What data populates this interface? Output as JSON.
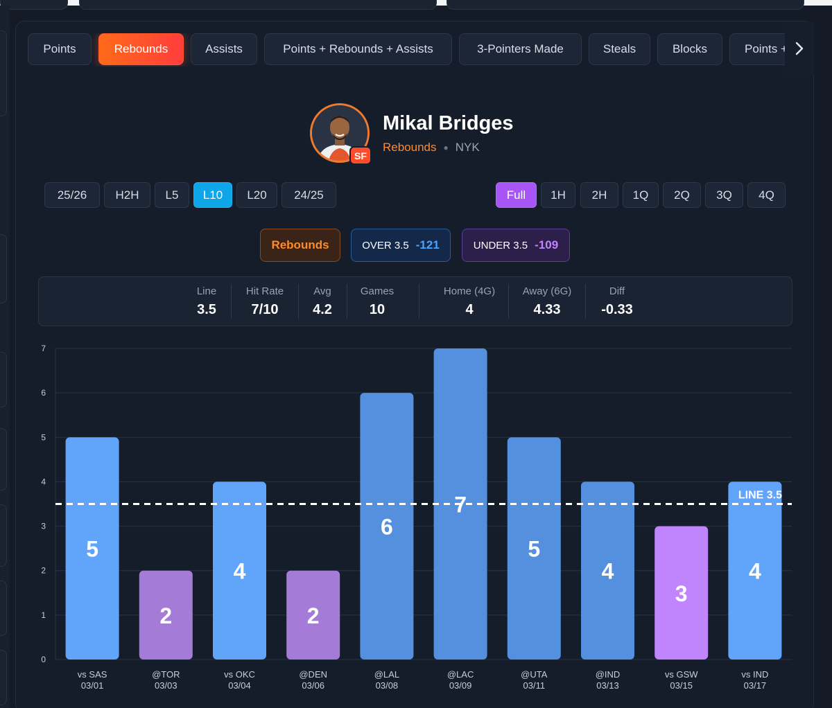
{
  "stat_tabs": [
    {
      "label": "Points",
      "active": false
    },
    {
      "label": "Rebounds",
      "active": true
    },
    {
      "label": "Assists",
      "active": false
    },
    {
      "label": "Points + Rebounds + Assists",
      "active": false
    },
    {
      "label": "3-Pointers Made",
      "active": false
    },
    {
      "label": "Steals",
      "active": false
    },
    {
      "label": "Blocks",
      "active": false
    },
    {
      "label": "Points + ",
      "active": false
    }
  ],
  "player": {
    "name": "Mikal Bridges",
    "stat": "Rebounds",
    "team": "NYK",
    "position": "SF"
  },
  "ranges": [
    {
      "label": "25/26",
      "active": false
    },
    {
      "label": "H2H",
      "active": false
    },
    {
      "label": "L5",
      "active": false
    },
    {
      "label": "L10",
      "active": true
    },
    {
      "label": "L20",
      "active": false
    },
    {
      "label": "24/25",
      "active": false
    }
  ],
  "periods": [
    {
      "label": "Full",
      "active": true
    },
    {
      "label": "1H",
      "active": false
    },
    {
      "label": "2H",
      "active": false
    },
    {
      "label": "1Q",
      "active": false
    },
    {
      "label": "2Q",
      "active": false
    },
    {
      "label": "3Q",
      "active": false
    },
    {
      "label": "4Q",
      "active": false
    }
  ],
  "market": {
    "stat_label": "Rebounds",
    "over_label": "OVER 3.5",
    "over_odds": "-121",
    "under_label": "UNDER 3.5",
    "under_odds": "-109"
  },
  "summary": [
    {
      "label": "Line",
      "value": "3.5"
    },
    {
      "label": "Hit Rate",
      "value": "7/10"
    },
    {
      "label": "Avg",
      "value": "4.2"
    },
    {
      "label": "Games",
      "value": "10"
    },
    {
      "label": "Home (4G)",
      "value": "4"
    },
    {
      "label": "Away (6G)",
      "value": "4.33"
    },
    {
      "label": "Diff",
      "value": "-0.33"
    }
  ],
  "colors": {
    "accent_orange": "#ff6a1a",
    "bar_over_home": "#60a5fa",
    "bar_over_away": "#5490de",
    "bar_under_home": "#c084fc",
    "bar_under_away": "#a57bd8",
    "line": "#ffffff"
  },
  "chart_data": {
    "type": "bar",
    "categories": [
      "vs SAS",
      "@TOR",
      "vs OKC",
      "@DEN",
      "@LAL",
      "@LAC",
      "@UTA",
      "@IND",
      "vs GSW",
      "vs IND"
    ],
    "dates": [
      "03/01",
      "03/03",
      "03/04",
      "03/06",
      "03/08",
      "03/09",
      "03/11",
      "03/13",
      "03/15",
      "03/17"
    ],
    "values": [
      5,
      2,
      4,
      2,
      6,
      7,
      5,
      4,
      3,
      4
    ],
    "ylim": [
      0,
      7
    ],
    "yticks": [
      0,
      1,
      2,
      3,
      4,
      5,
      6,
      7
    ],
    "line_value": 3.5,
    "line_label": "LINE 3.5",
    "grid": true
  }
}
